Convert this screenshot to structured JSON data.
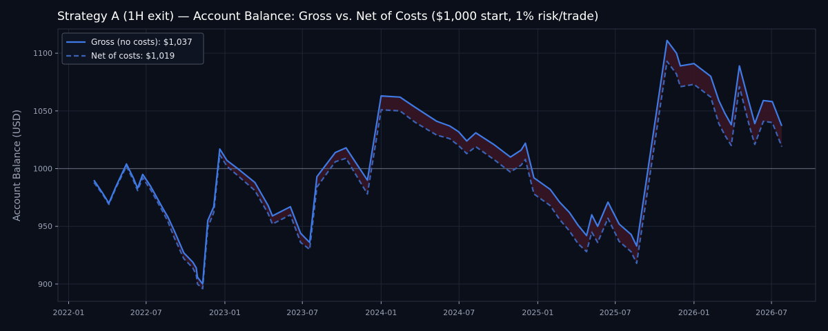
{
  "chart_data": {
    "type": "line",
    "title": "Strategy A (1H exit) — Account Balance: Gross vs. Net of Costs ($1,000 start, 1% risk/trade)",
    "xlabel": "",
    "ylabel": "Account Balance (USD)",
    "x_ticks": [
      "2022-01",
      "2022-07",
      "2023-01",
      "2023-07",
      "2024-01",
      "2024-07",
      "2025-01",
      "2025-07",
      "2026-01",
      "2026-07"
    ],
    "y_ticks": [
      900,
      950,
      1000,
      1050,
      1100
    ],
    "ylim": [
      885,
      1121
    ],
    "xlim": [
      "2021-12-07",
      "2026-10-12"
    ],
    "reference_line": 1000,
    "grid": true,
    "legend_position": "top-left",
    "colors": {
      "background": "#0b0f19",
      "grid": "#1f2535",
      "gross": "#3f7be6",
      "net": "#3a63b8",
      "fill": "#3a1524",
      "reference": "#5b6170",
      "text": "#9aa1b5",
      "title": "#ffffff"
    },
    "dates": [
      "2022-03-01",
      "2022-03-21",
      "2022-04-05",
      "2022-04-21",
      "2022-05-16",
      "2022-06-01",
      "2022-06-11",
      "2022-06-23",
      "2022-07-11",
      "2022-08-10",
      "2022-08-21",
      "2022-09-05",
      "2022-09-27",
      "2022-10-18",
      "2022-10-26",
      "2022-10-29",
      "2022-11-10",
      "2022-11-22",
      "2022-12-06",
      "2022-12-20",
      "2023-01-06",
      "2023-01-31",
      "2023-03-12",
      "2023-04-12",
      "2023-04-22",
      "2023-06-03",
      "2023-06-27",
      "2023-07-18",
      "2023-08-04",
      "2023-09-16",
      "2023-10-11",
      "2023-10-27",
      "2023-11-30",
      "2024-01-01",
      "2024-02-14",
      "2024-03-21",
      "2024-05-10",
      "2024-06-09",
      "2024-06-30",
      "2024-07-19",
      "2024-08-09",
      "2024-09-20",
      "2024-10-29",
      "2024-11-23",
      "2024-12-03",
      "2024-12-23",
      "2025-01-30",
      "2025-02-21",
      "2025-03-16",
      "2025-04-05",
      "2025-04-25",
      "2025-05-07",
      "2025-05-21",
      "2025-06-14",
      "2025-07-10",
      "2025-08-07",
      "2025-08-20",
      "2025-10-30",
      "2025-11-21",
      "2025-11-30",
      "2026-01-01",
      "2026-02-09",
      "2026-02-28",
      "2026-03-14",
      "2026-03-29",
      "2026-04-17",
      "2026-05-09",
      "2026-05-15",
      "2026-05-23",
      "2026-06-12",
      "2026-07-03",
      "2026-07-25"
    ],
    "series": [
      {
        "name": "Gross (no costs): $1,037",
        "style": "solid",
        "values": [
          990,
          979,
          970,
          984,
          1004,
          992,
          983,
          995,
          985,
          965,
          958,
          946,
          927,
          919,
          914,
          906,
          900,
          955,
          967,
          1017,
          1007,
          1000,
          988,
          968,
          959,
          967,
          944,
          936,
          993,
          1014,
          1018,
          1009,
          990,
          1063,
          1062,
          1053,
          1041,
          1037,
          1032,
          1024,
          1031,
          1021,
          1010,
          1016,
          1022,
          992,
          982,
          971,
          962,
          951,
          942,
          960,
          950,
          971,
          952,
          943,
          933,
          1111,
          1100,
          1089,
          1091,
          1080,
          1059,
          1048,
          1038,
          1089,
          1058,
          1050,
          1039,
          1059,
          1058,
          1037
        ]
      },
      {
        "name": "Net of costs: $1,019",
        "style": "dashed",
        "values": [
          988,
          978,
          969,
          983,
          1002,
          990,
          981,
          992,
          982,
          962,
          954,
          940,
          922,
          914,
          908,
          900,
          896,
          949,
          962,
          1012,
          1002,
          994,
          981,
          961,
          952,
          960,
          936,
          930,
          984,
          1006,
          1009,
          999,
          978,
          1051,
          1050,
          1040,
          1029,
          1026,
          1020,
          1013,
          1019,
          1008,
          997,
          1003,
          1008,
          978,
          968,
          956,
          946,
          935,
          928,
          945,
          936,
          957,
          937,
          928,
          918,
          1093,
          1082,
          1071,
          1073,
          1062,
          1039,
          1029,
          1020,
          1071,
          1039,
          1031,
          1021,
          1041,
          1040,
          1019
        ]
      }
    ]
  }
}
